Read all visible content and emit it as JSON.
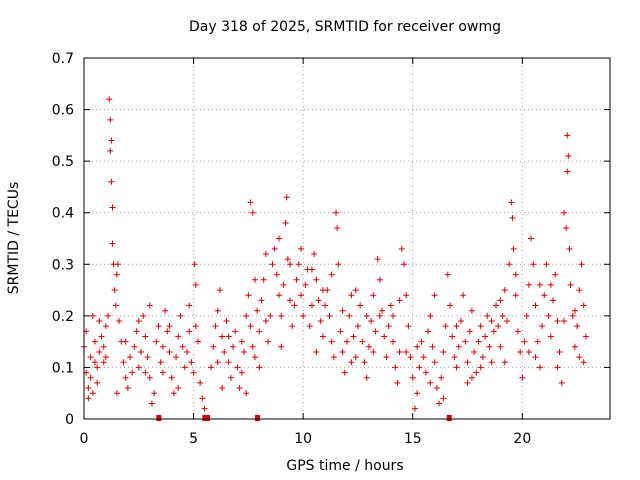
{
  "chart_data": {
    "type": "scatter",
    "title": "Day 318 of 2025, SRMTID for receiver owmg",
    "xlabel": "GPS time / hours",
    "ylabel": "SRMTID / TECUs",
    "xlim": [
      0,
      24
    ],
    "ylim": [
      0,
      0.7
    ],
    "x_ticks": [
      0,
      5,
      10,
      15,
      20
    ],
    "y_ticks": [
      0,
      0.1,
      0.2,
      0.3,
      0.4,
      0.5,
      0.6,
      0.7
    ],
    "x_tick_labels": [
      "0",
      "5",
      "10",
      "15",
      "20"
    ],
    "y_tick_labels": [
      "0",
      "0.1",
      "0.2",
      "0.3",
      "0.4",
      "0.5",
      "0.6",
      "0.7"
    ],
    "grid": true,
    "series": [
      {
        "name": "SRMTID",
        "color": "#e00000",
        "marker": "plus",
        "points": [
          [
            0.0,
            0.14
          ],
          [
            0.1,
            0.09
          ],
          [
            0.2,
            0.06
          ],
          [
            0.3,
            0.12
          ],
          [
            0.4,
            0.05
          ],
          [
            0.5,
            0.15
          ],
          [
            0.6,
            0.1
          ],
          [
            0.7,
            0.13
          ],
          [
            0.8,
            0.16
          ],
          [
            0.9,
            0.11
          ],
          [
            0.1,
            0.17
          ],
          [
            0.3,
            0.08
          ],
          [
            0.5,
            0.11
          ],
          [
            0.7,
            0.19
          ],
          [
            0.9,
            0.14
          ],
          [
            1.0,
            0.18
          ],
          [
            1.1,
            0.2
          ],
          [
            1.15,
            0.62
          ],
          [
            1.2,
            0.58
          ],
          [
            1.25,
            0.54
          ],
          [
            1.2,
            0.52
          ],
          [
            1.25,
            0.46
          ],
          [
            1.3,
            0.41
          ],
          [
            1.3,
            0.34
          ],
          [
            1.35,
            0.3
          ],
          [
            1.4,
            0.25
          ],
          [
            1.45,
            0.22
          ],
          [
            1.5,
            0.28
          ],
          [
            1.55,
            0.3
          ],
          [
            1.6,
            0.19
          ],
          [
            1.7,
            0.15
          ],
          [
            1.8,
            0.11
          ],
          [
            1.9,
            0.08
          ],
          [
            2.0,
            0.06
          ],
          [
            2.1,
            0.12
          ],
          [
            2.2,
            0.09
          ],
          [
            2.3,
            0.14
          ],
          [
            2.4,
            0.17
          ],
          [
            2.5,
            0.1
          ],
          [
            2.6,
            0.13
          ],
          [
            2.7,
            0.2
          ],
          [
            2.8,
            0.16
          ],
          [
            2.9,
            0.12
          ],
          [
            3.0,
            0.08
          ],
          [
            3.1,
            0.03
          ],
          [
            3.2,
            0.05
          ],
          [
            3.3,
            0.15
          ],
          [
            3.4,
            0.18
          ],
          [
            3.5,
            0.11
          ],
          [
            3.6,
            0.14
          ],
          [
            3.7,
            0.21
          ],
          [
            3.8,
            0.17
          ],
          [
            3.9,
            0.13
          ],
          [
            4.0,
            0.08
          ],
          [
            4.1,
            0.05
          ],
          [
            4.2,
            0.12
          ],
          [
            4.3,
            0.16
          ],
          [
            4.4,
            0.2
          ],
          [
            4.5,
            0.14
          ],
          [
            4.6,
            0.1
          ],
          [
            4.7,
            0.13
          ],
          [
            4.8,
            0.17
          ],
          [
            4.9,
            0.11
          ],
          [
            5.0,
            0.09
          ],
          [
            5.05,
            0.3
          ],
          [
            5.1,
            0.26
          ],
          [
            5.2,
            0.15
          ],
          [
            5.3,
            0.07
          ],
          [
            5.4,
            0.04
          ],
          [
            5.5,
            0.02
          ],
          [
            5.8,
            0.1
          ],
          [
            5.9,
            0.14
          ],
          [
            6.0,
            0.18
          ],
          [
            6.1,
            0.21
          ],
          [
            6.2,
            0.25
          ],
          [
            6.3,
            0.16
          ],
          [
            6.4,
            0.13
          ],
          [
            6.5,
            0.19
          ],
          [
            6.6,
            0.11
          ],
          [
            6.7,
            0.08
          ],
          [
            6.8,
            0.14
          ],
          [
            6.9,
            0.17
          ],
          [
            7.0,
            0.1
          ],
          [
            7.1,
            0.06
          ],
          [
            7.2,
            0.09
          ],
          [
            7.3,
            0.13
          ],
          [
            7.4,
            0.2
          ],
          [
            7.5,
            0.24
          ],
          [
            7.6,
            0.18
          ],
          [
            7.7,
            0.14
          ],
          [
            7.6,
            0.42
          ],
          [
            7.7,
            0.4
          ],
          [
            7.8,
            0.27
          ],
          [
            7.9,
            0.21
          ],
          [
            8.0,
            0.17
          ],
          [
            8.1,
            0.23
          ],
          [
            8.2,
            0.27
          ],
          [
            8.3,
            0.19
          ],
          [
            8.4,
            0.15
          ],
          [
            8.5,
            0.2
          ],
          [
            8.6,
            0.3
          ],
          [
            8.7,
            0.33
          ],
          [
            8.8,
            0.28
          ],
          [
            8.9,
            0.24
          ],
          [
            9.0,
            0.2
          ],
          [
            9.1,
            0.26
          ],
          [
            9.2,
            0.38
          ],
          [
            9.25,
            0.43
          ],
          [
            9.3,
            0.31
          ],
          [
            9.4,
            0.23
          ],
          [
            9.5,
            0.18
          ],
          [
            9.6,
            0.22
          ],
          [
            9.7,
            0.27
          ],
          [
            9.8,
            0.3
          ],
          [
            9.9,
            0.24
          ],
          [
            10.0,
            0.2
          ],
          [
            10.1,
            0.26
          ],
          [
            10.2,
            0.29
          ],
          [
            10.3,
            0.18
          ],
          [
            10.4,
            0.22
          ],
          [
            10.5,
            0.32
          ],
          [
            10.6,
            0.27
          ],
          [
            10.7,
            0.23
          ],
          [
            10.8,
            0.19
          ],
          [
            10.9,
            0.16
          ],
          [
            11.0,
            0.22
          ],
          [
            11.1,
            0.25
          ],
          [
            11.2,
            0.2
          ],
          [
            11.3,
            0.15
          ],
          [
            11.4,
            0.12
          ],
          [
            11.5,
            0.4
          ],
          [
            11.55,
            0.37
          ],
          [
            11.6,
            0.3
          ],
          [
            11.7,
            0.17
          ],
          [
            11.8,
            0.13
          ],
          [
            11.9,
            0.09
          ],
          [
            12.0,
            0.15
          ],
          [
            12.1,
            0.2
          ],
          [
            12.2,
            0.24
          ],
          [
            12.3,
            0.16
          ],
          [
            12.4,
            0.12
          ],
          [
            12.5,
            0.18
          ],
          [
            12.6,
            0.22
          ],
          [
            12.7,
            0.15
          ],
          [
            12.8,
            0.11
          ],
          [
            12.9,
            0.08
          ],
          [
            13.0,
            0.14
          ],
          [
            13.1,
            0.19
          ],
          [
            13.2,
            0.24
          ],
          [
            13.3,
            0.17
          ],
          [
            13.4,
            0.31
          ],
          [
            13.5,
            0.27
          ],
          [
            13.6,
            0.21
          ],
          [
            13.7,
            0.16
          ],
          [
            13.8,
            0.12
          ],
          [
            13.9,
            0.18
          ],
          [
            14.0,
            0.22
          ],
          [
            14.1,
            0.15
          ],
          [
            14.2,
            0.1
          ],
          [
            14.3,
            0.07
          ],
          [
            14.4,
            0.13
          ],
          [
            14.5,
            0.33
          ],
          [
            14.6,
            0.3
          ],
          [
            14.7,
            0.24
          ],
          [
            14.8,
            0.18
          ],
          [
            14.9,
            0.12
          ],
          [
            15.0,
            0.08
          ],
          [
            15.1,
            0.02
          ],
          [
            15.2,
            0.05
          ],
          [
            15.3,
            0.1
          ],
          [
            15.4,
            0.15
          ],
          [
            15.5,
            0.12
          ],
          [
            15.6,
            0.09
          ],
          [
            15.7,
            0.17
          ],
          [
            15.8,
            0.2
          ],
          [
            15.9,
            0.14
          ],
          [
            16.0,
            0.11
          ],
          [
            16.1,
            0.06
          ],
          [
            16.2,
            0.03
          ],
          [
            16.3,
            0.08
          ],
          [
            16.4,
            0.13
          ],
          [
            16.5,
            0.18
          ],
          [
            16.6,
            0.28
          ],
          [
            16.7,
            0.22
          ],
          [
            16.8,
            0.16
          ],
          [
            16.9,
            0.12
          ],
          [
            17.0,
            0.1
          ],
          [
            17.1,
            0.14
          ],
          [
            17.2,
            0.19
          ],
          [
            17.3,
            0.24
          ],
          [
            17.4,
            0.15
          ],
          [
            17.5,
            0.11
          ],
          [
            17.6,
            0.17
          ],
          [
            17.7,
            0.21
          ],
          [
            17.8,
            0.13
          ],
          [
            17.9,
            0.09
          ],
          [
            18.0,
            0.15
          ],
          [
            18.1,
            0.18
          ],
          [
            18.2,
            0.12
          ],
          [
            18.3,
            0.16
          ],
          [
            18.4,
            0.2
          ],
          [
            18.5,
            0.14
          ],
          [
            18.6,
            0.11
          ],
          [
            18.7,
            0.17
          ],
          [
            18.8,
            0.22
          ],
          [
            18.9,
            0.18
          ],
          [
            19.0,
            0.14
          ],
          [
            19.1,
            0.2
          ],
          [
            19.2,
            0.25
          ],
          [
            19.3,
            0.19
          ],
          [
            19.4,
            0.3
          ],
          [
            19.5,
            0.42
          ],
          [
            19.55,
            0.39
          ],
          [
            19.6,
            0.33
          ],
          [
            19.7,
            0.24
          ],
          [
            19.8,
            0.17
          ],
          [
            19.9,
            0.13
          ],
          [
            20.0,
            0.08
          ],
          [
            20.1,
            0.15
          ],
          [
            20.2,
            0.2
          ],
          [
            20.3,
            0.26
          ],
          [
            20.4,
            0.35
          ],
          [
            20.5,
            0.3
          ],
          [
            20.6,
            0.22
          ],
          [
            20.7,
            0.15
          ],
          [
            20.8,
            0.1
          ],
          [
            20.9,
            0.18
          ],
          [
            21.0,
            0.24
          ],
          [
            21.1,
            0.3
          ],
          [
            21.2,
            0.2
          ],
          [
            21.3,
            0.16
          ],
          [
            21.4,
            0.23
          ],
          [
            21.5,
            0.28
          ],
          [
            21.6,
            0.19
          ],
          [
            21.7,
            0.13
          ],
          [
            21.8,
            0.07
          ],
          [
            21.9,
            0.4
          ],
          [
            22.0,
            0.37
          ],
          [
            22.05,
            0.55
          ],
          [
            22.1,
            0.51
          ],
          [
            22.05,
            0.48
          ],
          [
            22.15,
            0.33
          ],
          [
            22.2,
            0.26
          ],
          [
            22.3,
            0.2
          ],
          [
            22.4,
            0.14
          ],
          [
            22.5,
            0.18
          ],
          [
            22.6,
            0.25
          ],
          [
            22.7,
            0.3
          ],
          [
            22.8,
            0.22
          ],
          [
            22.9,
            0.16
          ],
          [
            0.2,
            0.04
          ],
          [
            0.6,
            0.07
          ],
          [
            1.0,
            0.12
          ],
          [
            1.9,
            0.15
          ],
          [
            2.5,
            0.19
          ],
          [
            3.0,
            0.22
          ],
          [
            3.6,
            0.09
          ],
          [
            4.3,
            0.06
          ],
          [
            4.8,
            0.22
          ],
          [
            5.1,
            0.18
          ],
          [
            6.1,
            0.11
          ],
          [
            6.6,
            0.16
          ],
          [
            7.2,
            0.15
          ],
          [
            7.8,
            0.12
          ],
          [
            8.3,
            0.32
          ],
          [
            8.9,
            0.35
          ],
          [
            9.4,
            0.3
          ],
          [
            9.9,
            0.33
          ],
          [
            10.4,
            0.29
          ],
          [
            10.9,
            0.25
          ],
          [
            11.3,
            0.28
          ],
          [
            11.8,
            0.21
          ],
          [
            12.4,
            0.25
          ],
          [
            12.9,
            0.2
          ],
          [
            13.5,
            0.2
          ],
          [
            14.1,
            0.2
          ],
          [
            14.7,
            0.13
          ],
          [
            15.2,
            0.14
          ],
          [
            15.8,
            0.07
          ],
          [
            16.4,
            0.04
          ],
          [
            17.0,
            0.18
          ],
          [
            17.5,
            0.07
          ],
          [
            18.1,
            0.1
          ],
          [
            18.6,
            0.19
          ],
          [
            19.2,
            0.11
          ],
          [
            19.7,
            0.28
          ],
          [
            20.3,
            0.13
          ],
          [
            20.8,
            0.26
          ],
          [
            21.3,
            0.26
          ],
          [
            21.9,
            0.19
          ],
          [
            22.4,
            0.21
          ],
          [
            22.8,
            0.11
          ],
          [
            0.4,
            0.2
          ],
          [
            1.5,
            0.05
          ],
          [
            2.8,
            0.09
          ],
          [
            3.9,
            0.18
          ],
          [
            6.3,
            0.06
          ],
          [
            7.4,
            0.05
          ],
          [
            9.0,
            0.14
          ],
          [
            10.6,
            0.13
          ],
          [
            12.2,
            0.11
          ],
          [
            13.2,
            0.13
          ],
          [
            14.4,
            0.23
          ],
          [
            16.0,
            0.24
          ],
          [
            17.7,
            0.08
          ],
          [
            19.0,
            0.23
          ],
          [
            20.6,
            0.12
          ],
          [
            21.6,
            0.1
          ],
          [
            22.6,
            0.12
          ],
          [
            8.0,
            0.1
          ]
        ]
      }
    ],
    "flagged_intervals": [
      [
        3.3,
        3.45
      ],
      [
        5.4,
        5.75
      ],
      [
        7.8,
        7.92
      ],
      [
        16.55,
        16.75
      ]
    ]
  }
}
